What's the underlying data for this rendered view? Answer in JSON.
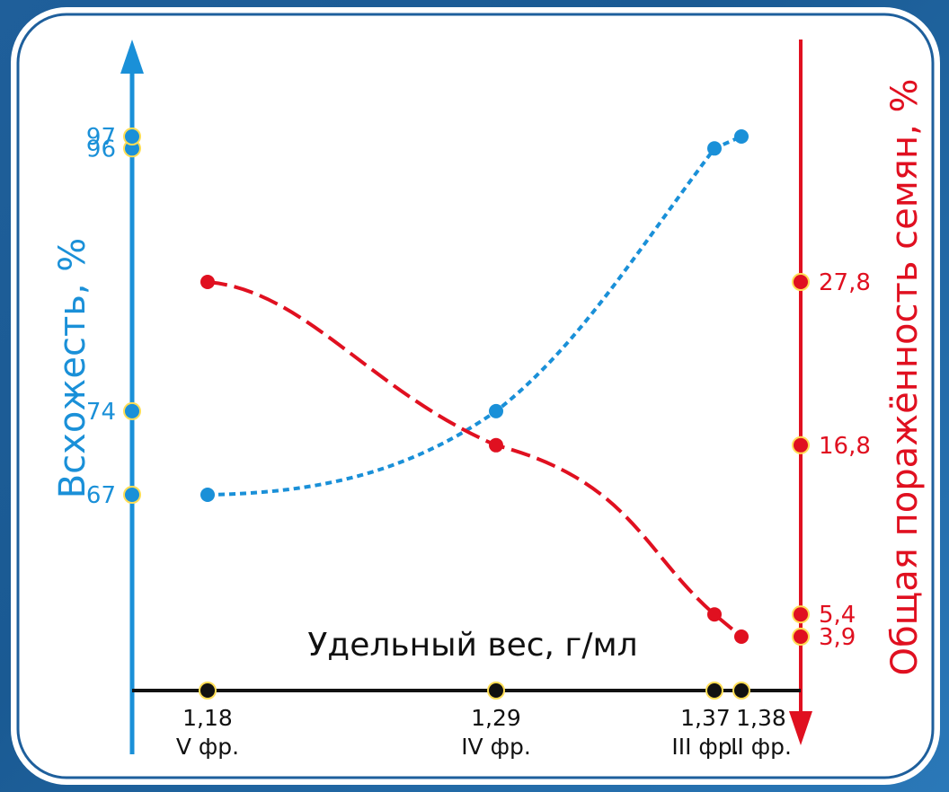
{
  "chart_data": {
    "type": "line",
    "xlabel": "Удельный вес, г/мл",
    "y_left_label": "Всхожесть, %",
    "y_right_label": "Общая поражённость семян, %",
    "x_ticks": [
      {
        "value": 1.18,
        "label": "1,18",
        "fraction": "V фр."
      },
      {
        "value": 1.29,
        "label": "1,29",
        "fraction": "IV фр."
      },
      {
        "value": 1.37,
        "label": "1,37",
        "fraction": "III фр."
      },
      {
        "value": 1.38,
        "label": "1,38",
        "fraction": "II фр."
      }
    ],
    "series": [
      {
        "axis": "left",
        "color": "#1a90d8",
        "points": [
          {
            "x": 1.18,
            "y": 67,
            "label": "67"
          },
          {
            "x": 1.29,
            "y": 74,
            "label": "74"
          },
          {
            "x": 1.37,
            "y": 96,
            "label": "96"
          },
          {
            "x": 1.38,
            "y": 97,
            "label": "97"
          }
        ]
      },
      {
        "axis": "right",
        "color": "#e01020",
        "points": [
          {
            "x": 1.18,
            "y": 27.8,
            "label": "27,8"
          },
          {
            "x": 1.29,
            "y": 16.8,
            "label": "16,8"
          },
          {
            "x": 1.37,
            "y": 5.4,
            "label": "5,4"
          },
          {
            "x": 1.38,
            "y": 3.9,
            "label": "3,9"
          }
        ]
      }
    ],
    "colors": {
      "blue": "#1a90d8",
      "red": "#e01020",
      "frame": "#1e5f9c"
    }
  }
}
